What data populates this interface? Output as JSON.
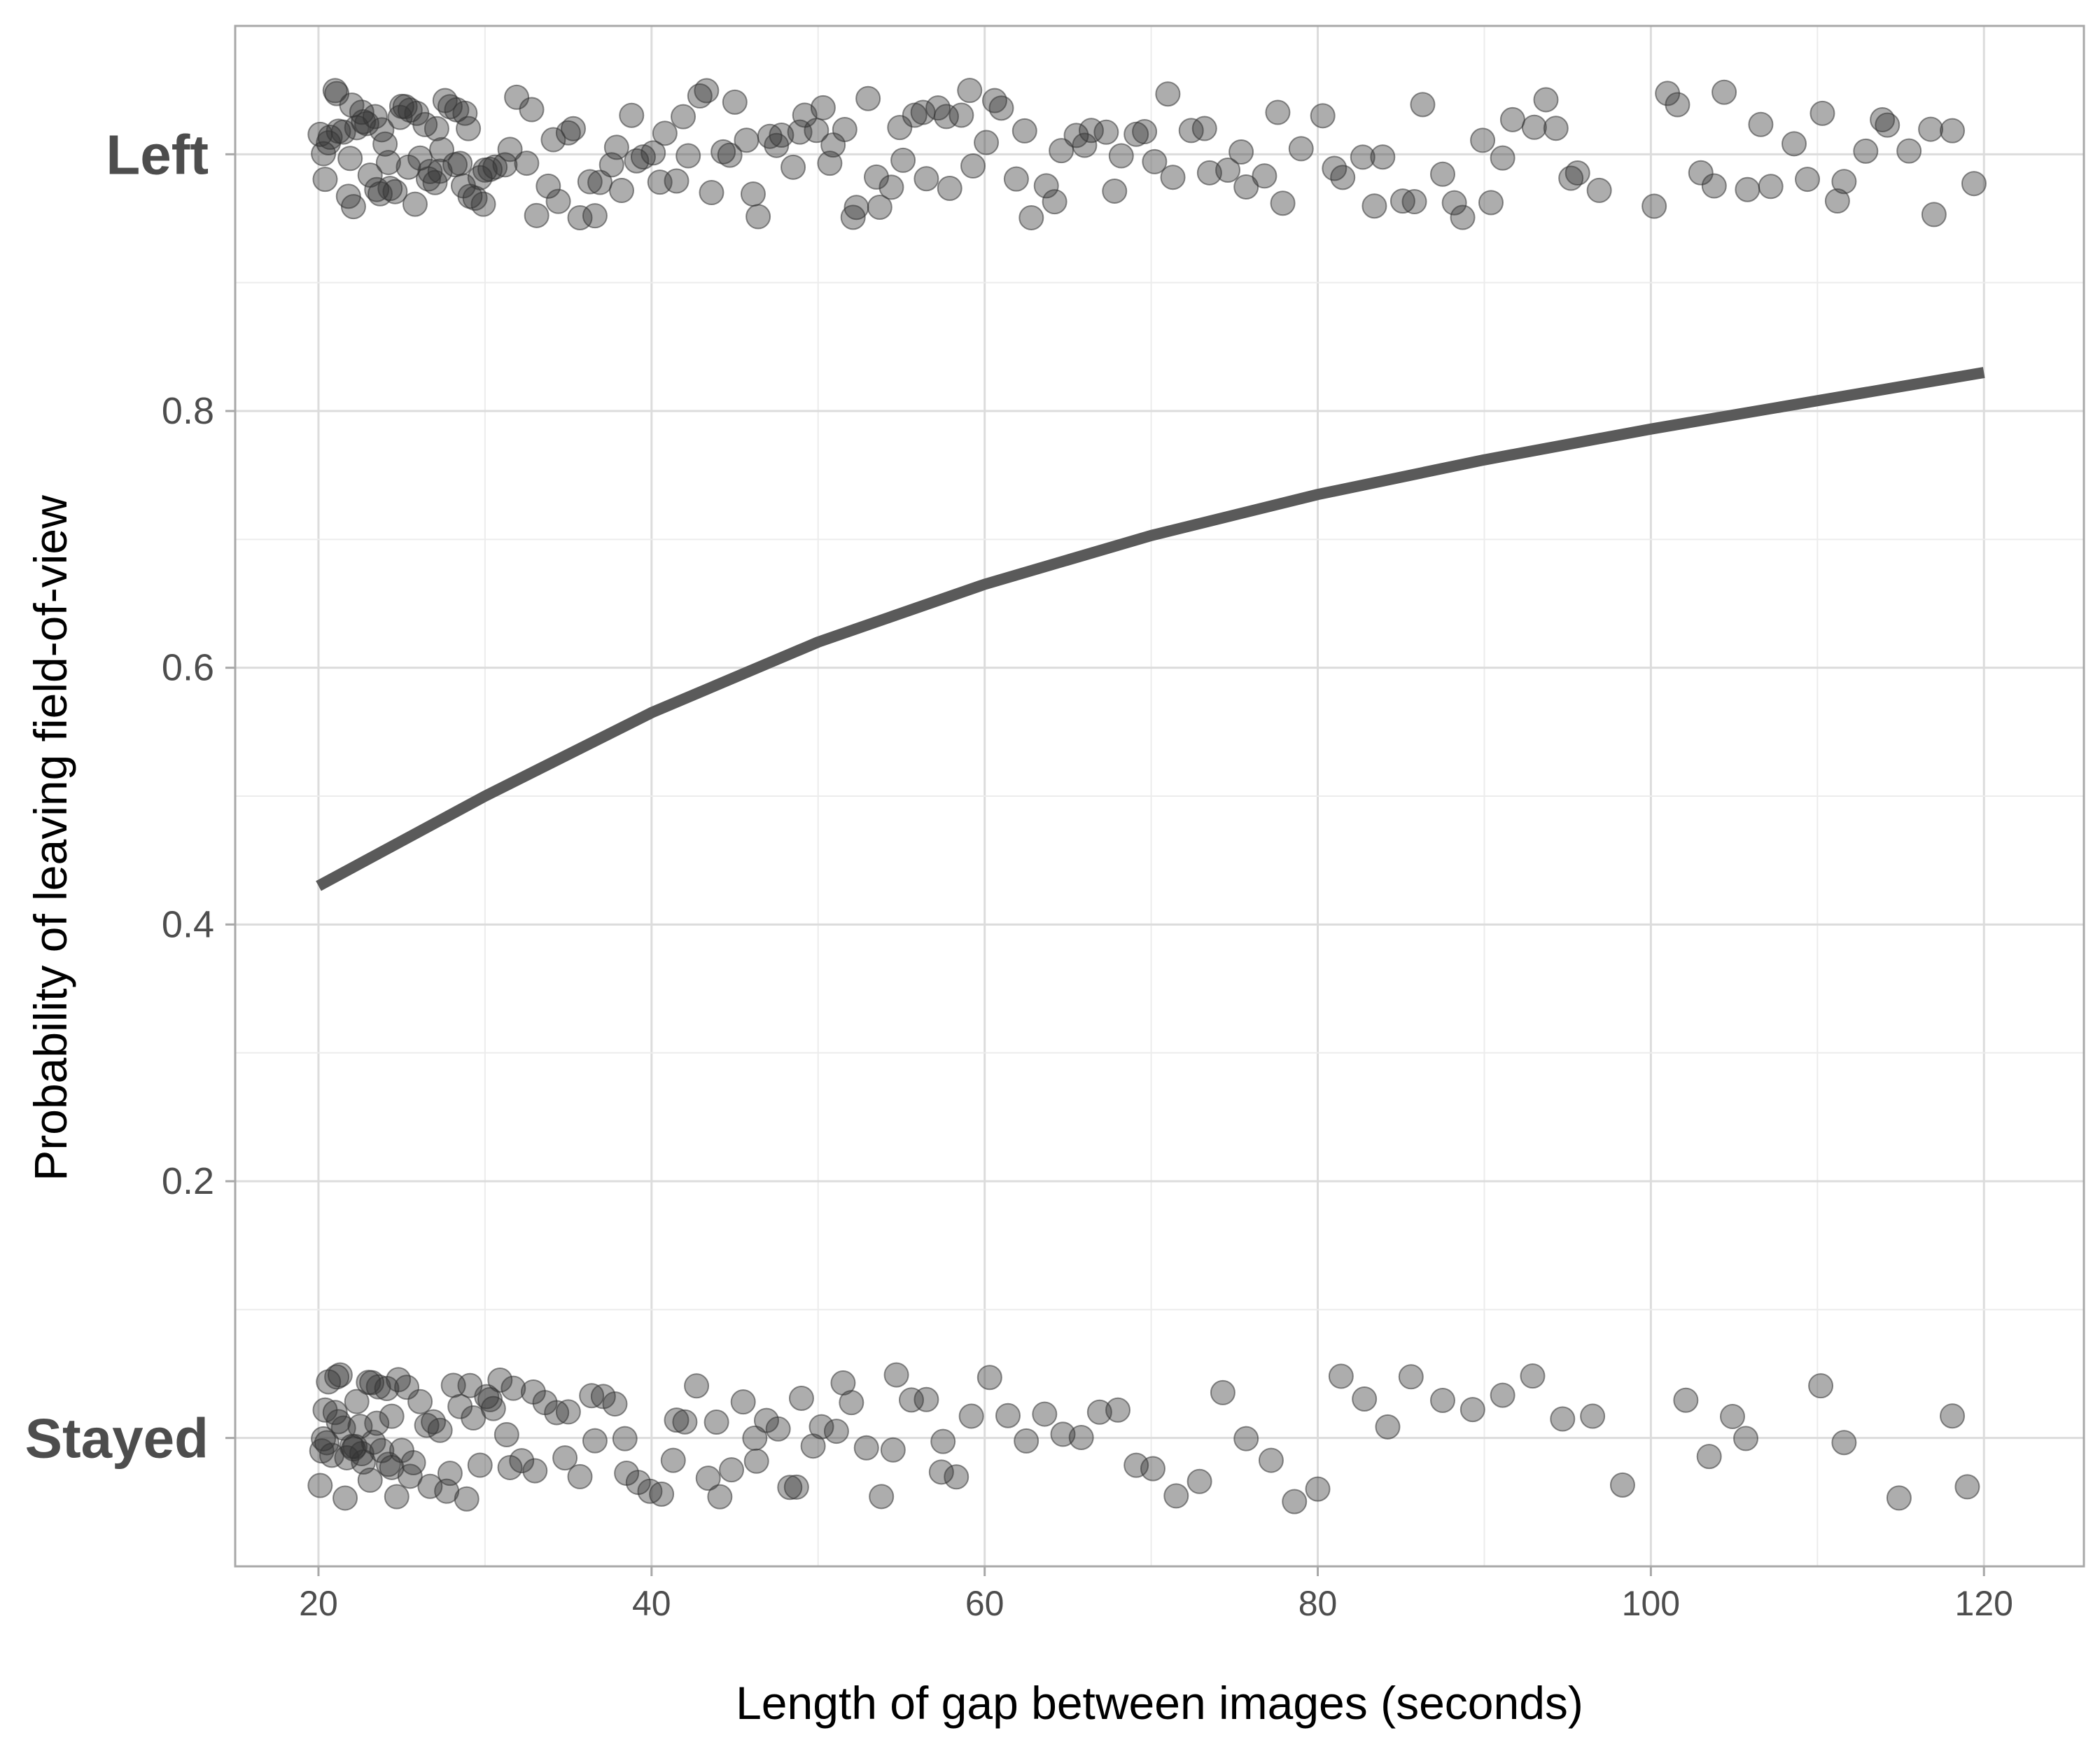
{
  "chart_data": {
    "type": "scatter",
    "xlabel": "Length of gap between images (seconds)",
    "ylabel": "Probability of leaving field-of-view",
    "xlim": [
      15,
      126
    ],
    "ylim": [
      -0.1,
      1.1
    ],
    "x_ticks": [
      20,
      40,
      60,
      80,
      100,
      120
    ],
    "x_tick_labels": [
      "20",
      "40",
      "60",
      "80",
      "100",
      "120"
    ],
    "y_ticks": [
      0.2,
      0.4,
      0.6,
      0.8
    ],
    "y_tick_labels": [
      "0.2",
      "0.4",
      "0.6",
      "0.8"
    ],
    "y_category_labels": [
      {
        "value": 1,
        "label": "Left"
      },
      {
        "value": 0,
        "label": "Stayed"
      }
    ],
    "grid": true,
    "colors": {
      "points": "#333333",
      "curve": "#5a5a5a",
      "grid": "#dcdcdc",
      "panel_border": "#a8a8a8",
      "text": "#4d4d4d"
    },
    "fit_curve": {
      "x": [
        20,
        30,
        40,
        50,
        60,
        70,
        80,
        90,
        100,
        110,
        120
      ],
      "y": [
        0.43,
        0.5,
        0.565,
        0.62,
        0.665,
        0.703,
        0.735,
        0.762,
        0.786,
        0.808,
        0.83
      ]
    },
    "points": {
      "jitter": 0.05,
      "point_opacity": 0.4,
      "left_x": [
        20.1,
        20.4,
        20.7,
        21.0,
        21.2,
        21.5,
        21.8,
        22.0,
        22.3,
        22.6,
        22.9,
        23.1,
        23.4,
        23.7,
        24.0,
        24.3,
        24.6,
        24.9,
        25.2,
        25.5,
        25.8,
        26.1,
        26.4,
        26.7,
        27.0,
        27.3,
        27.6,
        27.9,
        28.2,
        28.5,
        28.8,
        29.1,
        29.4,
        29.7,
        30.0,
        20.3,
        21.1,
        21.9,
        22.7,
        23.5,
        24.2,
        25.0,
        25.9,
        26.6,
        27.4,
        28.3,
        29.0,
        29.9,
        20.6,
        22.1,
        23.8,
        25.4,
        27.1,
        28.7,
        30.3,
        30.6,
        31.2,
        31.9,
        32.5,
        33.1,
        33.8,
        34.4,
        35.0,
        35.7,
        36.3,
        36.9,
        37.6,
        38.2,
        38.8,
        39.5,
        31.5,
        32.8,
        34.1,
        35.3,
        36.6,
        37.9,
        39.1,
        40.1,
        40.8,
        41.5,
        42.2,
        42.9,
        43.6,
        44.3,
        45.0,
        45.7,
        46.4,
        47.1,
        47.8,
        48.5,
        49.2,
        49.9,
        40.5,
        41.9,
        43.3,
        44.7,
        46.1,
        47.5,
        48.9,
        50.3,
        50.9,
        51.6,
        52.3,
        53.0,
        53.7,
        54.4,
        55.1,
        55.8,
        56.5,
        57.2,
        57.9,
        58.6,
        59.3,
        50.7,
        52.1,
        53.5,
        54.9,
        56.3,
        57.7,
        59.1,
        60.1,
        61.0,
        61.9,
        62.8,
        63.7,
        64.6,
        65.5,
        66.4,
        67.3,
        68.2,
        69.1,
        60.6,
        62.4,
        64.2,
        66.0,
        67.8,
        69.6,
        70.2,
        71.3,
        72.4,
        73.5,
        74.6,
        75.7,
        76.8,
        77.9,
        79.0,
        71.0,
        73.2,
        75.4,
        77.6,
        80.3,
        81.5,
        82.7,
        83.9,
        85.1,
        86.3,
        87.5,
        88.7,
        89.9,
        81.0,
        83.4,
        85.8,
        88.2,
        90.4,
        91.7,
        93.0,
        94.3,
        95.6,
        96.9,
        91.1,
        93.7,
        95.2,
        100.2,
        101.6,
        103.0,
        104.4,
        105.8,
        107.2,
        108.6,
        101.0,
        103.8,
        106.6,
        109.4,
        110.3,
        111.6,
        112.9,
        114.2,
        115.5,
        116.8,
        118.1,
        119.4,
        111.2,
        113.9,
        117.0
      ],
      "stayed_x": [
        20.1,
        20.3,
        20.5,
        20.8,
        21.0,
        21.2,
        21.5,
        21.7,
        22.0,
        22.2,
        22.5,
        22.7,
        23.0,
        23.2,
        23.5,
        23.8,
        24.1,
        24.4,
        24.7,
        25.0,
        20.2,
        20.6,
        21.1,
        21.6,
        22.1,
        22.6,
        23.1,
        23.6,
        24.2,
        24.8,
        20.4,
        21.3,
        22.3,
        23.3,
        24.4,
        25.3,
        25.7,
        26.1,
        26.5,
        26.9,
        27.3,
        27.7,
        28.1,
        28.5,
        28.9,
        29.3,
        29.7,
        30.1,
        30.5,
        30.9,
        31.3,
        31.7,
        25.5,
        26.7,
        27.9,
        29.1,
        30.3,
        31.5,
        32.2,
        32.9,
        33.6,
        34.3,
        35.0,
        35.7,
        36.4,
        37.1,
        37.8,
        38.5,
        39.2,
        39.9,
        33.0,
        34.8,
        36.6,
        38.4,
        40.6,
        41.3,
        42.0,
        42.7,
        43.4,
        44.1,
        44.8,
        45.5,
        46.2,
        46.9,
        47.6,
        48.3,
        49.0,
        49.7,
        41.5,
        43.9,
        46.3,
        48.7,
        50.2,
        51.1,
        52.0,
        52.9,
        53.8,
        54.7,
        55.6,
        56.5,
        57.4,
        58.3,
        59.2,
        51.5,
        54.5,
        57.5,
        60.3,
        61.4,
        62.5,
        63.6,
        64.7,
        65.8,
        66.9,
        68.0,
        69.1,
        70.1,
        71.5,
        72.9,
        74.3,
        75.7,
        77.2,
        78.6,
        80.0,
        81.4,
        82.8,
        84.2,
        85.6,
        87.5,
        89.3,
        91.1,
        92.9,
        94.7,
        96.5,
        98.3,
        102.1,
        103.5,
        104.9,
        105.7,
        110.2,
        111.6,
        114.9,
        118.1,
        119.0
      ]
    }
  }
}
